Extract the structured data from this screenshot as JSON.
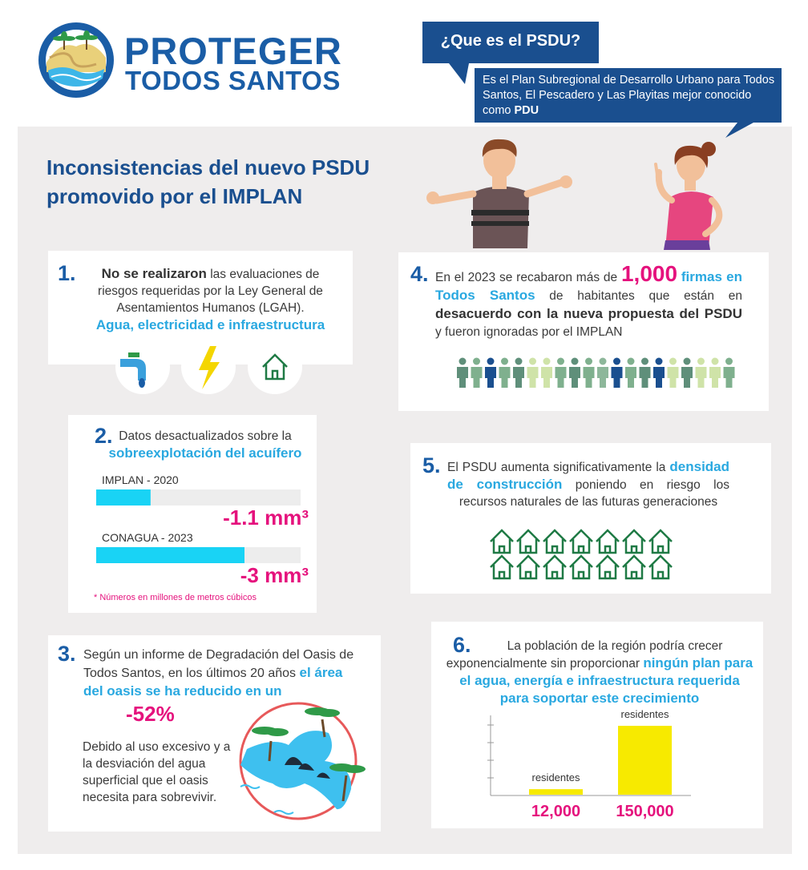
{
  "header": {
    "logo_line1": "PROTEGER",
    "logo_line2": "TODOS SANTOS"
  },
  "intro": {
    "question": "¿Que es el PSDU?",
    "answer": "Es el Plan Subregional de Desarrollo Urbano para Todos Santos, El Pescadero y Las Playitas mejor conocido como",
    "answer_bold": "PDU"
  },
  "title": [
    "Inconsistencias del nuevo PSDU",
    "promovido por el IMPLAN"
  ],
  "sections": [
    {
      "number": "1.",
      "lead": "No se realizaron",
      "text": "las evaluaciones de riesgos requeridas por la Ley General de Asentamientos Humanos (LGAH).",
      "highlight": "Agua, electricidad e infraestructura"
    },
    {
      "number": "2.",
      "text": "Datos desactualizados sobre la",
      "highlight": "sobreexplotación del acuífero",
      "bars": [
        {
          "name": "IMPLAN - 2020",
          "value": -1.1,
          "label": "-1.1 mm³"
        },
        {
          "name": "CONAGUA - 2023",
          "value": -3,
          "label": "-3 mm³"
        }
      ],
      "note": "* Números en millones de metros cúbicos"
    },
    {
      "number": "3.",
      "text": "Según un informe de Degradación del Oasis de Todos Santos, en los últimos 20 años",
      "highlight": "el área del oasis se ha reducido en un",
      "stat": "-52%",
      "detail": "Debido al uso excesivo y a la desviación del agua superficial que el oasis necesita para sobrevivir."
    },
    {
      "number": "4.",
      "text1": "En el 2023 se recabaron más de",
      "stat": "1,000",
      "highlight": "firmas en Todos Santos",
      "text2": "de habitantes que están en",
      "bold": "desacuerdo con la nueva propuesta del PSDU",
      "text3": "y fueron ignoradas por el IMPLAN"
    },
    {
      "number": "5.",
      "text1": "El PSDU aumenta significativamente la",
      "highlight": "densidad de construcción",
      "text2": "poniendo en riesgo los recursos naturales de las futuras generaciones"
    },
    {
      "number": "6.",
      "text": "La población de la región podría crecer exponencialmente sin proporcionar",
      "highlight": "ningún plan para el agua, energía e infraestructura requerida para soportar este crecimiento",
      "bars": [
        {
          "name": "residentes",
          "value": 12000,
          "label": "12,000"
        },
        {
          "name": "residentes",
          "value": 150000,
          "label": "150,000"
        }
      ]
    }
  ]
}
